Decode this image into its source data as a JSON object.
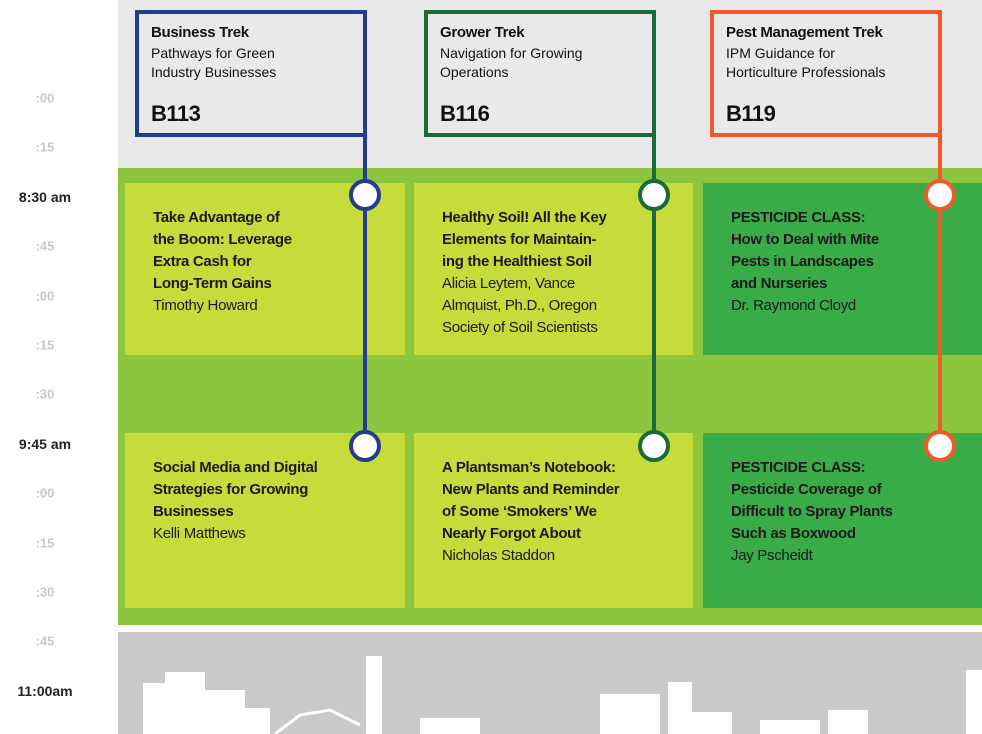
{
  "times": [
    {
      "label": ":00",
      "major": false
    },
    {
      "label": ":15",
      "major": false
    },
    {
      "label": "8:30 am",
      "major": true
    },
    {
      "label": ":45",
      "major": false
    },
    {
      "label": ":00",
      "major": false
    },
    {
      "label": ":15",
      "major": false
    },
    {
      "label": ":30",
      "major": false
    },
    {
      "label": "9:45 am",
      "major": true
    },
    {
      "label": ":00",
      "major": false
    },
    {
      "label": ":15",
      "major": false
    },
    {
      "label": ":30",
      "major": false
    },
    {
      "label": ":45",
      "major": false
    },
    {
      "label": "11:00am",
      "major": true
    }
  ],
  "tracks": [
    {
      "title": "Business Trek",
      "subtitle": [
        "Pathways for Green",
        "Industry Businesses"
      ],
      "room": "B113",
      "color": "#253c8e",
      "card_color": "#c6dc3b",
      "sessions": [
        {
          "title": [
            "Take Advantage of",
            "the Boom: Leverage",
            "Extra Cash for",
            "Long-Term Gains"
          ],
          "speaker": [
            "Timothy Howard"
          ]
        },
        {
          "title": [
            "Social Media and Digital",
            "Strategies for  Growing",
            "Businesses"
          ],
          "speaker": [
            "Kelli Matthews"
          ]
        }
      ]
    },
    {
      "title": "Grower Trek",
      "subtitle": [
        "Navigation for Growing",
        "Operations"
      ],
      "room": "B116",
      "color": "#1a6b37",
      "card_color": "#c6dc3b",
      "sessions": [
        {
          "title": [
            "Healthy Soil! All the Key",
            "Elements for Maintain-",
            "ing the Healthiest Soil"
          ],
          "speaker": [
            "Alicia Leytem, Vance",
            "Almquist, Ph.D., Oregon",
            "Society of Soil Scientists"
          ]
        },
        {
          "title": [
            "A Plantsman’s Notebook:",
            "New Plants and Reminder",
            "of Some ‘Smokers’ We",
            "Nearly Forgot About"
          ],
          "speaker": [
            "Nicholas Staddon"
          ]
        }
      ]
    },
    {
      "title": "Pest Management Trek",
      "subtitle": [
        "IPM Guidance for",
        "Horticulture Professionals"
      ],
      "room": "B119",
      "color": "#ee5a2a",
      "card_color": "#3aac47",
      "sessions": [
        {
          "title": [
            "PESTICIDE CLASS:",
            "How to Deal with Mite",
            "Pests in Landscapes",
            "and Nurseries"
          ],
          "speaker": [
            "Dr. Raymond Cloyd"
          ]
        },
        {
          "title": [
            "PESTICIDE CLASS:",
            "Pesticide Coverage of",
            "Difficult to Spray Plants",
            "Such as Boxwood"
          ],
          "speaker": [
            "Jay Pscheidt"
          ]
        }
      ]
    }
  ]
}
